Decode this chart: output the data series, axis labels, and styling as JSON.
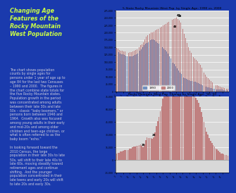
{
  "background_color": "#1a3aad",
  "text_italic_title": "Changing Age\nFeatures of the\nRocky Mountain\nWest Population",
  "body_text": "The chart shows population\ncounts by single ages for\npersons under 1 year of age up to\nage 84 for the last two Censuses\n– 1990 and 2000.  The figures in\nthe chart combine state totals for\nthe five Rocky Mountain states.\nPopulation growth in the period\nwas concentrated among adults\nbetween their late 30s and late\n50s – classic “baby boomers,” or\npersons born between 1946 and\n1964.  Growth also was focused\namong young adults in their early\nand mid-20s and among older\nchildren and teen-age children, or\nwhat is often referred to as the\nbaby boom “echo.”\n\nIn looking forward toward the\n2010 Census, the large\npopulation in their late 30s to late\n50s, will shift to their late 40s to\nlate 60s, moving steadily toward\nretirement ages and continue\nshifting.  And the younger\npopulation concentrated in their\nlate teens and early 20s will shift\nto late 20s and early 30s.",
  "chart1_title": "5-State Rocky Mountain West Pop. by Single Age: 1990 vs. 2000",
  "chart2_title": "Rocky Mountain West Pop. Change by Single Age: '90-'00",
  "ages": [
    0,
    1,
    2,
    3,
    4,
    5,
    6,
    7,
    8,
    9,
    10,
    11,
    12,
    13,
    14,
    15,
    16,
    17,
    18,
    19,
    20,
    21,
    22,
    23,
    24,
    25,
    26,
    27,
    28,
    29,
    30,
    31,
    32,
    33,
    34,
    35,
    36,
    37,
    38,
    39,
    40,
    41,
    42,
    43,
    44,
    45,
    46,
    47,
    48,
    49,
    50,
    51,
    52,
    53,
    54,
    55,
    56,
    57,
    58,
    59,
    60,
    61,
    62,
    63,
    64,
    65,
    66,
    67,
    68,
    69,
    70,
    71,
    72,
    73,
    74,
    75,
    76,
    77,
    78,
    79,
    80,
    81,
    82,
    83,
    84
  ],
  "pop1990": [
    140000,
    136000,
    133000,
    130000,
    128000,
    126000,
    124000,
    122000,
    121000,
    120000,
    119000,
    120000,
    121000,
    122000,
    125000,
    127000,
    130000,
    133000,
    138000,
    143000,
    152000,
    158000,
    163000,
    165000,
    168000,
    171000,
    174000,
    177000,
    177000,
    174000,
    170000,
    166000,
    163000,
    159000,
    156000,
    151000,
    146000,
    141000,
    136000,
    129000,
    121000,
    113000,
    106000,
    99000,
    93000,
    86000,
    79000,
    73000,
    66000,
    59000,
    53000,
    48000,
    45000,
    43000,
    41000,
    39000,
    37000,
    36000,
    35000,
    34000,
    33000,
    31000,
    29000,
    27000,
    25000,
    23000,
    21000,
    19000,
    17000,
    15000,
    14000,
    13000,
    12000,
    11000,
    10000,
    9000,
    8500,
    8000,
    7500,
    7000,
    6500,
    6000,
    5500,
    5000,
    4500
  ],
  "pop2000": [
    148000,
    145000,
    142000,
    140000,
    138000,
    137000,
    136000,
    134000,
    133000,
    132000,
    133000,
    134000,
    136000,
    138000,
    141000,
    144000,
    147000,
    151000,
    157000,
    160000,
    167000,
    177000,
    187000,
    192000,
    194000,
    197000,
    200000,
    202000,
    204000,
    207000,
    210000,
    212000,
    214000,
    217000,
    220000,
    224000,
    227000,
    230000,
    234000,
    237000,
    240000,
    242000,
    244000,
    246000,
    248000,
    250000,
    247000,
    242000,
    234000,
    224000,
    212000,
    197000,
    182000,
    164000,
    150000,
    140000,
    132000,
    124000,
    117000,
    112000,
    107000,
    102000,
    97000,
    90000,
    82000,
    74000,
    66000,
    58000,
    51000,
    45000,
    40000,
    36000,
    32000,
    29000,
    26000,
    23000,
    21000,
    19000,
    17000,
    15000,
    14000,
    13000,
    12000,
    11000,
    10000
  ],
  "color1990": "#7090c0",
  "color2000": "#c08080",
  "chart1_ylim": [
    0,
    275000
  ],
  "chart1_yticks": [
    0,
    25000,
    50000,
    75000,
    100000,
    125000,
    150000,
    175000,
    200000,
    225000,
    250000,
    275000
  ],
  "chart2_ylim": [
    -15000,
    75000
  ],
  "chart2_yticks": [
    -15000,
    0,
    15000,
    30000,
    45000,
    60000,
    75000
  ],
  "legend_1990": "1990",
  "legend_2000": "2000",
  "chart_bg": "#d8d8d8",
  "annot_ages_c2": [
    20,
    28,
    44,
    47,
    48
  ],
  "annot_labels_c2": [
    "20",
    "28",
    "44",
    "47",
    "48"
  ]
}
